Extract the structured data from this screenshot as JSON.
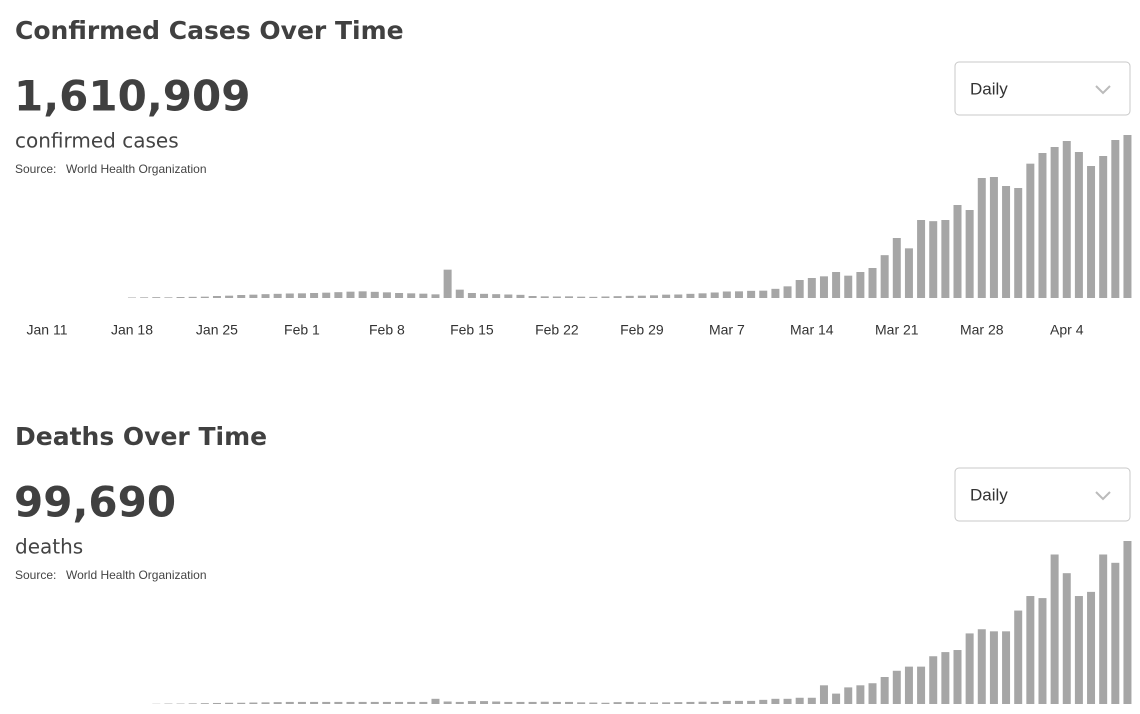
{
  "chart_data": [
    {
      "type": "bar",
      "title": "Confirmed Cases Over Time",
      "total": "1,610,909",
      "subtitle": "confirmed cases",
      "source_label": "Source:",
      "source": "World Health Organization",
      "dropdown": "Daily",
      "color": "#a6a6a6",
      "categories": [
        "Jan 11",
        null,
        null,
        null,
        null,
        null,
        null,
        "Jan 18",
        null,
        null,
        null,
        null,
        null,
        null,
        "Jan 25",
        null,
        null,
        null,
        null,
        null,
        null,
        "Feb 1",
        null,
        null,
        null,
        null,
        null,
        null,
        "Feb 8",
        null,
        null,
        null,
        null,
        null,
        null,
        "Feb 15",
        null,
        null,
        null,
        null,
        null,
        null,
        "Feb 22",
        null,
        null,
        null,
        null,
        null,
        null,
        "Feb 29",
        null,
        null,
        null,
        null,
        null,
        null,
        "Mar 7",
        null,
        null,
        null,
        null,
        null,
        null,
        "Mar 14",
        null,
        null,
        null,
        null,
        null,
        null,
        "Mar 21",
        null,
        null,
        null,
        null,
        null,
        null,
        "Mar 28",
        null,
        null,
        null,
        null,
        null,
        null,
        "Apr 4",
        null,
        null,
        null,
        null,
        null
      ],
      "values": [
        0,
        0,
        0,
        0,
        0,
        0,
        0,
        300,
        400,
        500,
        400,
        600,
        700,
        800,
        1200,
        1400,
        1800,
        2000,
        2300,
        2500,
        2700,
        2800,
        3000,
        3200,
        3500,
        3800,
        4000,
        3700,
        3400,
        3000,
        2800,
        2600,
        2200,
        17000,
        5000,
        3000,
        2500,
        2300,
        2100,
        1900,
        1200,
        1000,
        900,
        1000,
        800,
        700,
        900,
        1100,
        1300,
        1400,
        1600,
        2000,
        2100,
        2500,
        2800,
        3300,
        3900,
        4000,
        4300,
        4400,
        5500,
        7000,
        10800,
        12000,
        13000,
        15600,
        13400,
        15600,
        18000,
        25700,
        36000,
        29800,
        46800,
        46100,
        46800,
        55800,
        52800,
        72000,
        72600,
        67200,
        66000,
        80600,
        87000,
        90600,
        94200,
        87600,
        79200,
        85200,
        94800,
        97800
      ]
    },
    {
      "type": "bar",
      "title": "Deaths Over Time",
      "total": "99,690",
      "subtitle": "deaths",
      "source_label": "Source:",
      "source": "World Health Organization",
      "dropdown": "Daily",
      "color": "#a6a6a6",
      "values": [
        0,
        0,
        0,
        0,
        0,
        0,
        0,
        0,
        0,
        10,
        20,
        20,
        30,
        40,
        50,
        60,
        60,
        70,
        80,
        90,
        100,
        100,
        100,
        100,
        100,
        100,
        100,
        100,
        100,
        100,
        100,
        100,
        250,
        120,
        100,
        140,
        140,
        120,
        100,
        100,
        100,
        110,
        100,
        100,
        80,
        70,
        60,
        90,
        100,
        80,
        70,
        80,
        90,
        100,
        110,
        100,
        150,
        150,
        150,
        200,
        250,
        250,
        300,
        300,
        900,
        500,
        800,
        900,
        1000,
        1300,
        1600,
        1800,
        1800,
        2300,
        2500,
        2600,
        3400,
        3600,
        3500,
        3500,
        4500,
        5200,
        5100,
        7200,
        6300,
        5200,
        5400,
        7200,
        6800,
        7850
      ]
    }
  ]
}
